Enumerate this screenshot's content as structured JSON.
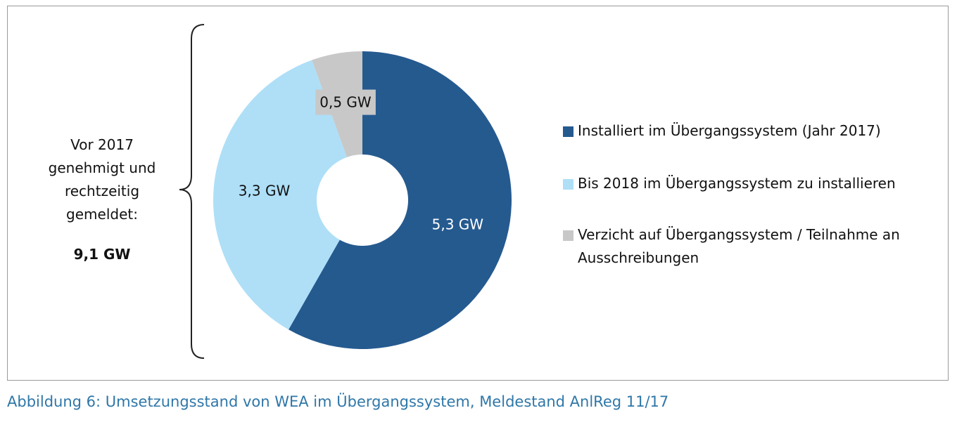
{
  "chart_data": {
    "type": "donut",
    "annotation": "Vor 2017 genehmigt und rechtzeitig gemeldet:",
    "annotation_total": "9,1 GW",
    "caption": "Abbildung 6: Umsetzungsstand von WEA im Übergangssystem, Meldestand AnlReg 11/17",
    "categories": [
      "Installiert im Übergangssystem (Jahr 2017)",
      "Bis 2018 im Übergangssystem zu installieren",
      "Verzicht auf Übergangssystem / Teilnahme an Ausschreibungen"
    ],
    "values": [
      5.3,
      3.3,
      0.5
    ],
    "value_labels": [
      "5,3 GW",
      "3,3 GW",
      "0,5 GW"
    ],
    "colors": [
      "#255a8f",
      "#aedff7",
      "#c8c8c8"
    ]
  }
}
